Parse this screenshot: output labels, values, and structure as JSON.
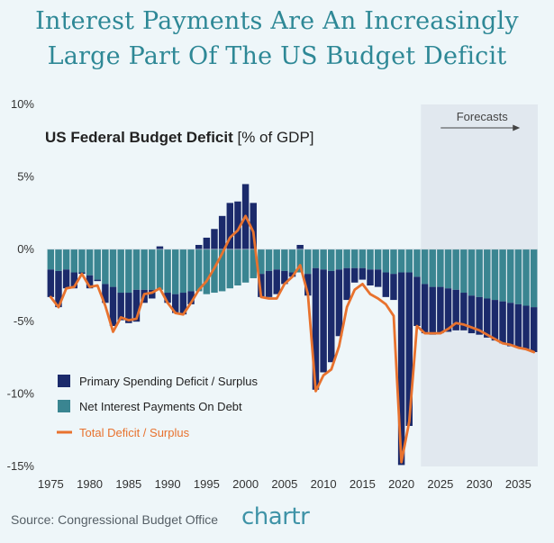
{
  "title_line1": "Interest Payments Are An Increasingly",
  "title_line2": "Large Part Of The US Budget Deficit",
  "source": "Source: Congressional Budget Office",
  "logo": "chartr",
  "colors": {
    "background": "#eef6f9",
    "forecast_bg": "#e1e8ef",
    "primary": "#1b2a6b",
    "interest": "#3a8591",
    "total": "#e8722e",
    "title": "#2e8896"
  },
  "chart_data": {
    "type": "bar",
    "stacked": true,
    "title": "US Federal Budget Deficit",
    "subtitle": "[% of GDP]",
    "xlabel": "",
    "ylabel": "",
    "ylim": [
      -15,
      10
    ],
    "yticks": [
      10,
      5,
      0,
      -5,
      -10,
      -15
    ],
    "ytick_labels": [
      "10%",
      "5%",
      "0%",
      "-5%",
      "-10%",
      "-15%"
    ],
    "xticks": [
      1975,
      1980,
      1985,
      1990,
      1995,
      2000,
      2005,
      2010,
      2015,
      2020,
      2025,
      2030,
      2035
    ],
    "forecast_label": "Forecasts",
    "forecast_start": 2023,
    "grid": false,
    "legend_position": "bottom-left",
    "x": [
      1975,
      1976,
      1977,
      1978,
      1979,
      1980,
      1981,
      1982,
      1983,
      1984,
      1985,
      1986,
      1987,
      1988,
      1989,
      1990,
      1991,
      1992,
      1993,
      1994,
      1995,
      1996,
      1997,
      1998,
      1999,
      2000,
      2001,
      2002,
      2003,
      2004,
      2005,
      2006,
      2007,
      2008,
      2009,
      2010,
      2011,
      2012,
      2013,
      2014,
      2015,
      2016,
      2017,
      2018,
      2019,
      2020,
      2021,
      2022,
      2023,
      2024,
      2025,
      2026,
      2027,
      2028,
      2029,
      2030,
      2031,
      2032,
      2033,
      2034,
      2035,
      2036,
      2037
    ],
    "series": [
      {
        "name": "Primary Spending Deficit / Surplus",
        "values": [
          -1.9,
          -2.5,
          -1.3,
          -1.1,
          -0.1,
          -0.9,
          -0.1,
          -1.3,
          -2.7,
          -1.9,
          -2.1,
          -2.2,
          -0.9,
          -0.6,
          0.2,
          -0.7,
          -1.3,
          -1.5,
          -0.9,
          0.3,
          0.8,
          1.4,
          2.3,
          3.2,
          3.3,
          4.5,
          3.2,
          -1.6,
          -1.8,
          -1.7,
          -0.9,
          -0.3,
          0.3,
          -1.5,
          -8.4,
          -7.1,
          -6.3,
          -4.6,
          -2.2,
          -1.0,
          -0.8,
          -1.1,
          -1.2,
          -1.7,
          -1.8,
          -13.3,
          -10.6,
          -3.4,
          -3.4,
          -3.3,
          -3.2,
          -3.0,
          -2.8,
          -2.6,
          -2.6,
          -2.6,
          -2.7,
          -2.8,
          -2.9,
          -3.0,
          -3.0,
          -3.0,
          -3.1
        ]
      },
      {
        "name": "Net Interest Payments On Debt",
        "values": [
          -1.4,
          -1.5,
          -1.4,
          -1.6,
          -1.6,
          -1.8,
          -2.1,
          -2.4,
          -2.6,
          -3.0,
          -3.0,
          -2.8,
          -2.8,
          -2.8,
          -2.8,
          -3.0,
          -3.1,
          -3.0,
          -2.9,
          -2.9,
          -3.1,
          -3.0,
          -2.9,
          -2.7,
          -2.5,
          -2.3,
          -2.0,
          -1.7,
          -1.5,
          -1.4,
          -1.5,
          -1.6,
          -1.6,
          -1.7,
          -1.3,
          -1.4,
          -1.5,
          -1.4,
          -1.3,
          -1.3,
          -1.3,
          -1.4,
          -1.4,
          -1.6,
          -1.7,
          -1.6,
          -1.6,
          -1.9,
          -2.4,
          -2.6,
          -2.6,
          -2.7,
          -2.8,
          -3.0,
          -3.2,
          -3.3,
          -3.4,
          -3.5,
          -3.6,
          -3.7,
          -3.8,
          -3.9,
          -4.0
        ]
      },
      {
        "name": "Total Deficit / Surplus",
        "type": "line",
        "values": [
          -3.3,
          -4.0,
          -2.7,
          -2.6,
          -1.7,
          -2.6,
          -2.5,
          -3.9,
          -5.7,
          -4.7,
          -4.9,
          -4.8,
          -3.1,
          -3.0,
          -2.7,
          -3.7,
          -4.4,
          -4.5,
          -3.7,
          -2.8,
          -2.2,
          -1.3,
          -0.3,
          0.8,
          1.3,
          2.3,
          1.2,
          -3.3,
          -3.4,
          -3.4,
          -2.4,
          -1.9,
          -1.1,
          -3.1,
          -9.8,
          -8.7,
          -8.3,
          -6.7,
          -4.0,
          -2.8,
          -2.4,
          -3.1,
          -3.4,
          -3.8,
          -4.6,
          -14.7,
          -11.9,
          -5.3,
          -5.8,
          -5.8,
          -5.8,
          -5.5,
          -5.1,
          -5.2,
          -5.4,
          -5.6,
          -5.9,
          -6.2,
          -6.5,
          -6.6,
          -6.8,
          -6.9,
          -7.1
        ]
      }
    ]
  }
}
